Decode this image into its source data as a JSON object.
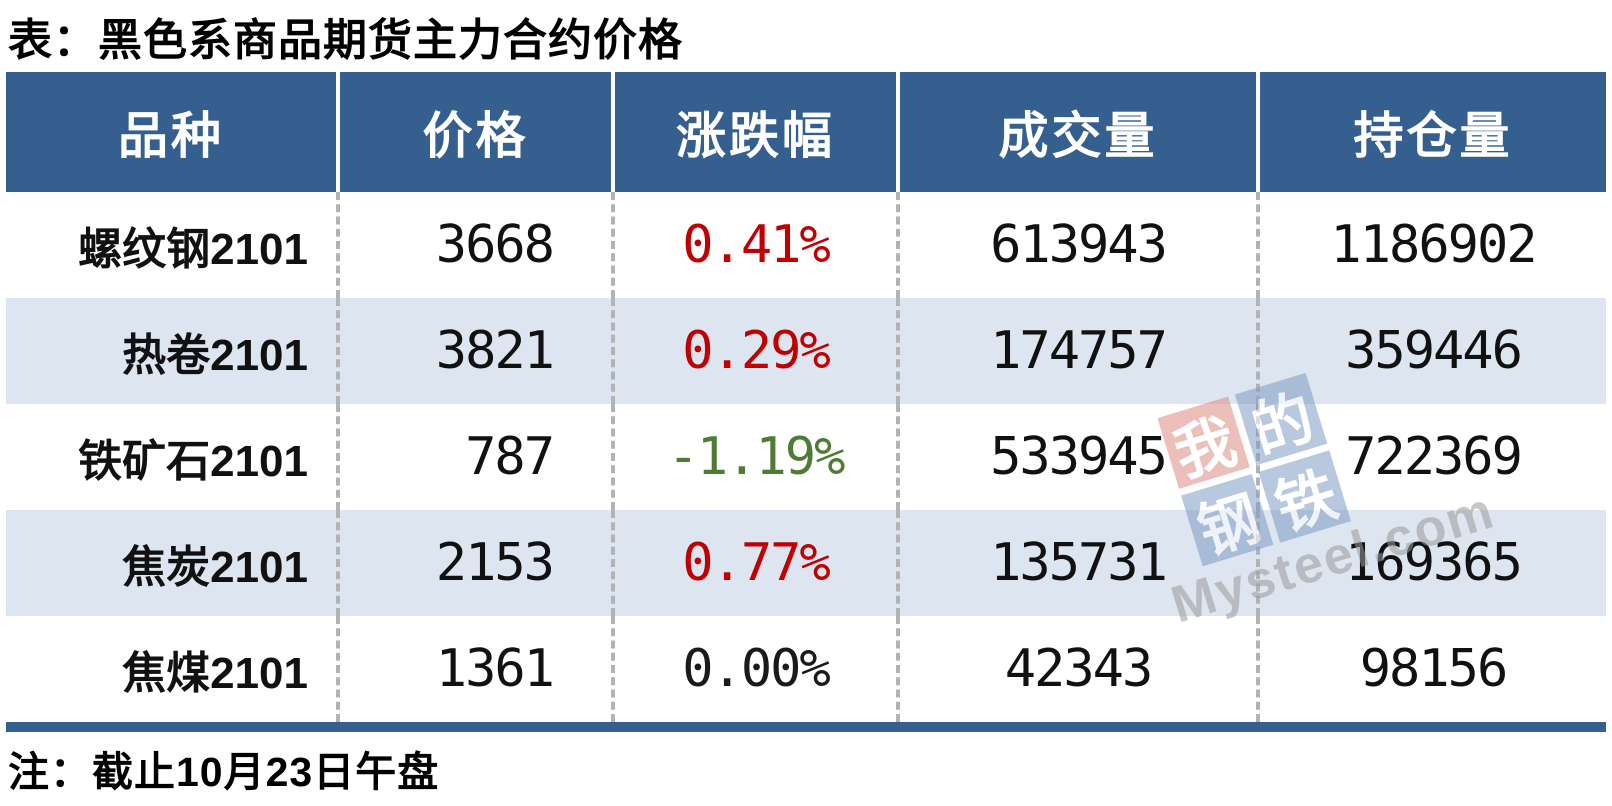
{
  "title": "表：黑色系商品期货主力合约价格",
  "note": "注：截止10月23日午盘",
  "colors": {
    "header_bg": "#355F8F",
    "alt_row_bg": "#DCE5F0",
    "up_red": "#C00000",
    "down_green": "#4E7C34",
    "flat_black": "#1a1a1a",
    "bottom_bar": "#355F8F"
  },
  "table": {
    "columns": [
      "品种",
      "价格",
      "涨跌幅",
      "成交量",
      "持仓量"
    ],
    "rows": [
      {
        "variety": "螺纹钢2101",
        "price": "3668",
        "change": "0.41%",
        "change_dir": "up",
        "volume": "613943",
        "open_interest": "1186902"
      },
      {
        "variety": "热卷2101",
        "price": "3821",
        "change": "0.29%",
        "change_dir": "up",
        "volume": "174757",
        "open_interest": "359446"
      },
      {
        "variety": "铁矿石2101",
        "price": "787",
        "change": "-1.19%",
        "change_dir": "down",
        "volume": "533945",
        "open_interest": "722369"
      },
      {
        "variety": "焦炭2101",
        "price": "2153",
        "change": "0.77%",
        "change_dir": "up",
        "volume": "135731",
        "open_interest": "169365"
      },
      {
        "variety": "焦煤2101",
        "price": "1361",
        "change": "0.00%",
        "change_dir": "flat",
        "volume": "42343",
        "open_interest": "98156"
      }
    ]
  },
  "watermark": {
    "tiles": [
      "我",
      "的",
      "钢",
      "铁"
    ],
    "text": "Mysteel.com"
  },
  "chart_data": {
    "type": "table",
    "title": "表：黑色系商品期货主力合约价格",
    "columns": [
      "品种",
      "价格",
      "涨跌幅",
      "成交量",
      "持仓量"
    ],
    "rows": [
      [
        "螺纹钢2101",
        3668,
        "0.41%",
        613943,
        1186902
      ],
      [
        "热卷2101",
        3821,
        "0.29%",
        174757,
        359446
      ],
      [
        "铁矿石2101",
        787,
        "-1.19%",
        533945,
        722369
      ],
      [
        "焦炭2101",
        2153,
        "0.77%",
        135731,
        169365
      ],
      [
        "焦煤2101",
        1361,
        "0.00%",
        42343,
        98156
      ]
    ],
    "footnote": "注：截止10月23日午盘"
  }
}
